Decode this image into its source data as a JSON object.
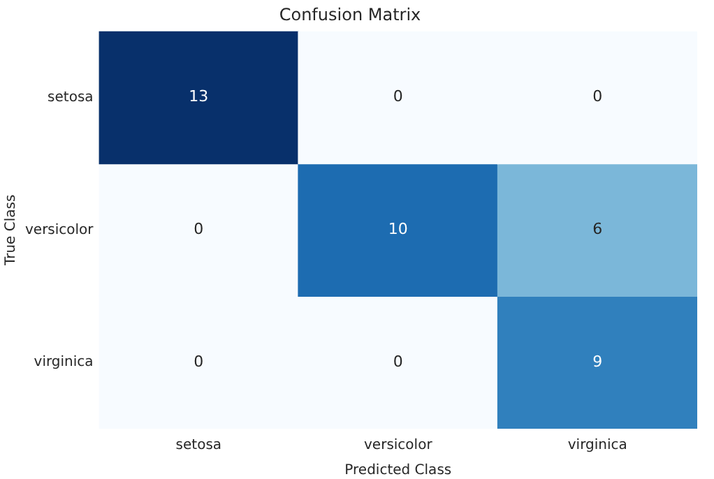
{
  "chart_data": {
    "type": "heatmap",
    "title": "Confusion Matrix",
    "xlabel": "Predicted Class",
    "ylabel": "True Class",
    "categories": [
      "setosa",
      "versicolor",
      "virginica"
    ],
    "y_categories": [
      "setosa",
      "versicolor",
      "virginica"
    ],
    "cells": [
      [
        13,
        0,
        0
      ],
      [
        0,
        10,
        6
      ],
      [
        0,
        0,
        9
      ]
    ],
    "data_labels": true,
    "grid": false,
    "legend": false
  }
}
